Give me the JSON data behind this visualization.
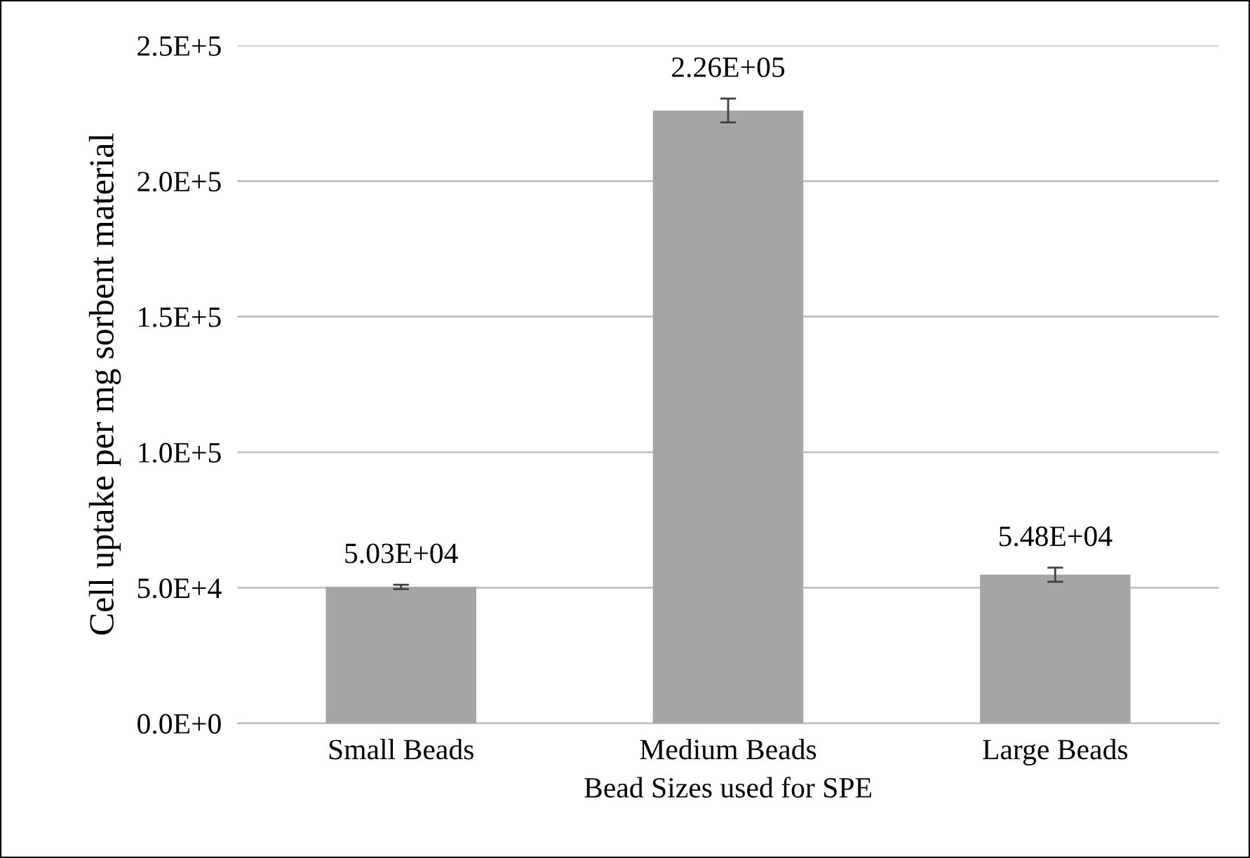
{
  "chart_data": {
    "type": "bar",
    "xlabel": "Bead Sizes used for SPE",
    "ylabel": "Cell uptake per mg sorbent material",
    "categories": [
      "Small Beads",
      "Medium Beads",
      "Large Beads"
    ],
    "values": [
      50300,
      226000,
      54800
    ],
    "errors": [
      800,
      4400,
      2600
    ],
    "value_labels": [
      "5.03E+04",
      "2.26E+05",
      "5.48E+04"
    ],
    "color": "#a5a5a5",
    "ylim": [
      0,
      250000
    ],
    "yticks": [
      {
        "value": 0,
        "label": "0.0E+0"
      },
      {
        "value": 50000,
        "label": "5.0E+4"
      },
      {
        "value": 100000,
        "label": "1.0E+5"
      },
      {
        "value": 150000,
        "label": "1.5E+5"
      },
      {
        "value": 200000,
        "label": "2.0E+5"
      },
      {
        "value": 250000,
        "label": "2.5E+5"
      }
    ],
    "grid": "y",
    "legend": false
  }
}
